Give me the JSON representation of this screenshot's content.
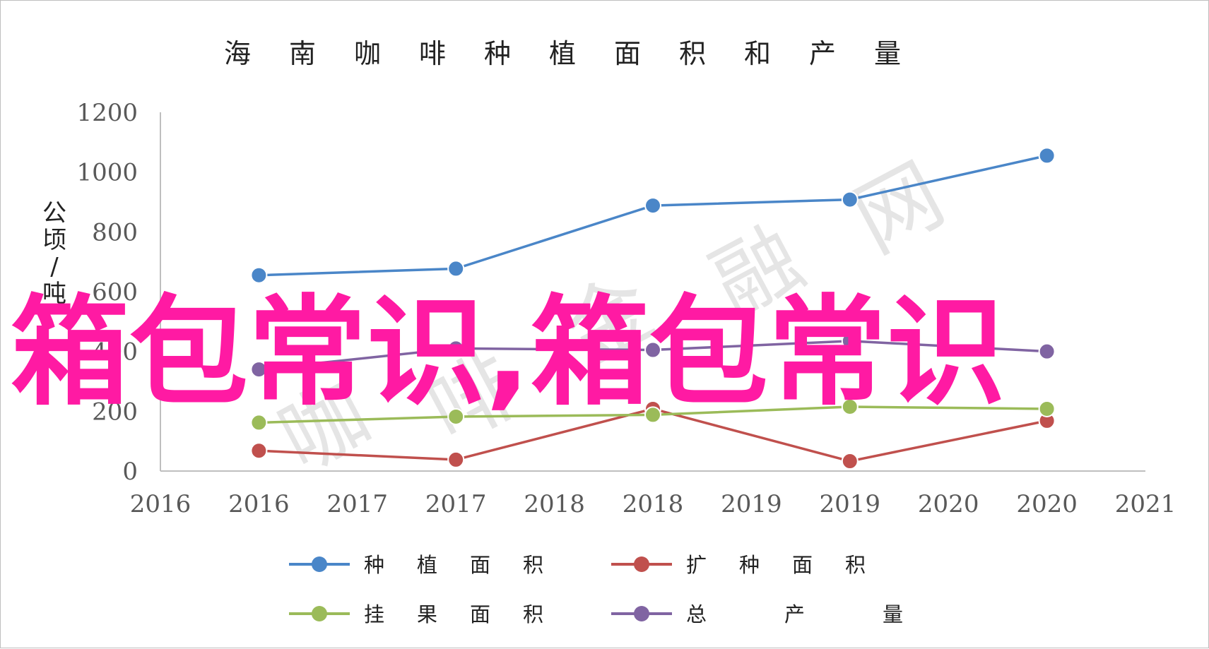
{
  "chart_data": {
    "type": "line",
    "title": "海南咖啡种植面积和产量",
    "ylabel": "公顷/吨",
    "ylim": [
      0,
      1200
    ],
    "yticks": [
      0,
      200,
      400,
      600,
      800,
      1000,
      1200
    ],
    "x_tick_labels": [
      "2016",
      "2016",
      "2017",
      "2017",
      "2018",
      "2018",
      "2019",
      "2019",
      "2020",
      "2020",
      "2021"
    ],
    "x": [
      "2016",
      "2017",
      "2018",
      "2019",
      "2020"
    ],
    "grid": false,
    "legend_position": "bottom",
    "series": [
      {
        "name": "种植面积",
        "color": "#4a86c8",
        "values": [
          655,
          677,
          888,
          908,
          1055
        ]
      },
      {
        "name": "扩种面积",
        "color": "#c0504d",
        "values": [
          68,
          38,
          208,
          33,
          168
        ]
      },
      {
        "name": "挂果面积",
        "color": "#9bbb59",
        "values": [
          162,
          182,
          188,
          215,
          208
        ]
      },
      {
        "name": "总产量",
        "color": "#8064a2",
        "values": [
          340,
          410,
          405,
          435,
          400
        ]
      }
    ]
  },
  "overlay": {
    "text": "箱包常识,箱包常识",
    "color": "#ff1aa3"
  },
  "watermark": {
    "text": "咖啡金融网"
  }
}
